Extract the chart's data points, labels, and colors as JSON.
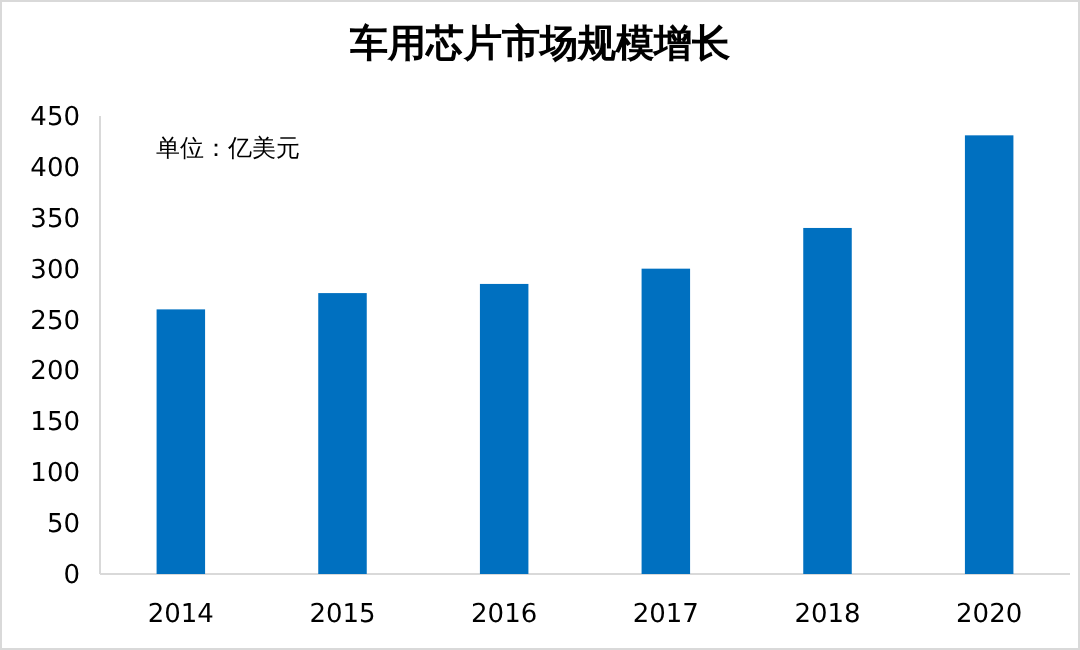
{
  "chart_data": {
    "type": "bar",
    "title": "车用芯片市场规模增长",
    "annotations": [
      "单位：亿美元"
    ],
    "categories": [
      "2014",
      "2015",
      "2016",
      "2017",
      "2018",
      "2020"
    ],
    "values": [
      260,
      276,
      285,
      300,
      340,
      431
    ],
    "color": "#0070c0",
    "ylim": [
      0,
      450
    ],
    "yticks": [
      0,
      50,
      100,
      150,
      200,
      250,
      300,
      350,
      400,
      450
    ],
    "grid": false,
    "legend": false
  }
}
